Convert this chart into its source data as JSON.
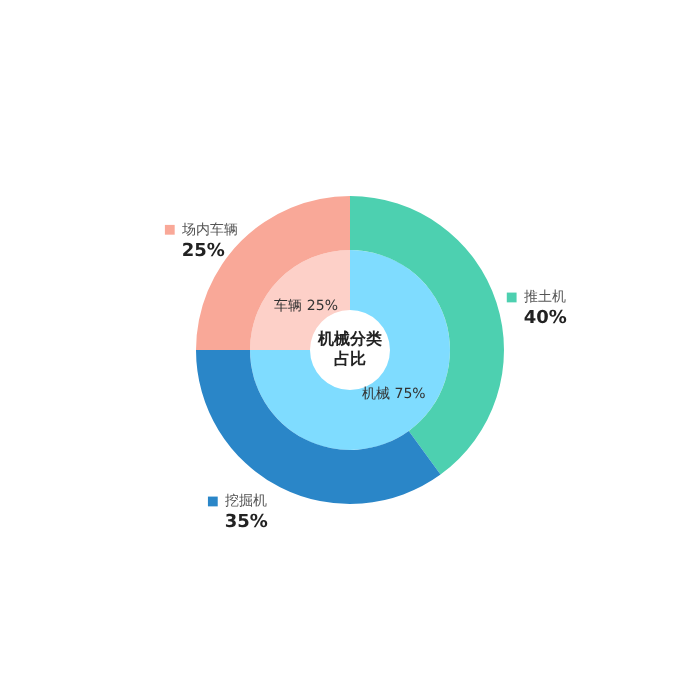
{
  "chart_data": {
    "type": "donut",
    "title": "机械分类占比",
    "legend": "right",
    "categories": [
      "机械",
      "车辆",
      "推土机",
      "挖掘机",
      "场内车辆"
    ],
    "colors": [
      "#7fdcff",
      "#fdd0c8",
      "#4dd0b0",
      "#2a86c8",
      "#f9a898"
    ],
    "series": [
      {
        "values": [
          75,
          25,
          null,
          null,
          null
        ],
        "value_labels": [
          "75%",
          "25%",
          null,
          null,
          null
        ]
      },
      {
        "values": [
          null,
          null,
          40,
          35,
          25
        ],
        "value_labels": [
          null,
          null,
          "40%",
          "35%",
          "25%"
        ]
      }
    ]
  }
}
